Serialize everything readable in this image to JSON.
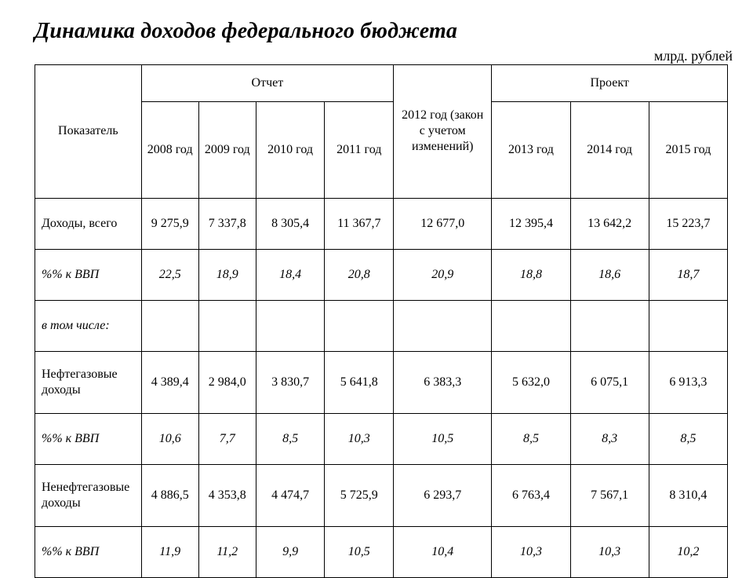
{
  "title": "Динамика доходов федерального бюджета",
  "unit": "млрд. рублей",
  "header": {
    "indicator": "Показатель",
    "report": "Отчет",
    "mid": "2012 год (закон с учетом изменений)",
    "project": "Проект",
    "y2008": "2008 год",
    "y2009": "2009 год",
    "y2010": "2010 год",
    "y2011": "2011 год",
    "y2013": "2013 год",
    "y2014": "2014 год",
    "y2015": "2015 год"
  },
  "rows": {
    "total": {
      "label": "Доходы, всего",
      "v2008": "9 275,9",
      "v2009": "7 337,8",
      "v2010": "8 305,4",
      "v2011": "11 367,7",
      "v2012": "12 677,0",
      "v2013": "12 395,4",
      "v2014": "13 642,2",
      "v2015": "15 223,7"
    },
    "total_gdp": {
      "label": "%% к ВВП",
      "v2008": "22,5",
      "v2009": "18,9",
      "v2010": "18,4",
      "v2011": "20,8",
      "v2012": "20,9",
      "v2013": "18,8",
      "v2014": "18,6",
      "v2015": "18,7"
    },
    "including": {
      "label": "в том числе:"
    },
    "oil": {
      "label": "Нефтегазовые доходы",
      "v2008": "4 389,4",
      "v2009": "2 984,0",
      "v2010": "3 830,7",
      "v2011": "5 641,8",
      "v2012": "6 383,3",
      "v2013": "5 632,0",
      "v2014": "6 075,1",
      "v2015": "6 913,3"
    },
    "oil_gdp": {
      "label": "%% к ВВП",
      "v2008": "10,6",
      "v2009": "7,7",
      "v2010": "8,5",
      "v2011": "10,3",
      "v2012": "10,5",
      "v2013": "8,5",
      "v2014": "8,3",
      "v2015": "8,5"
    },
    "nonoil": {
      "label": "Ненефтегазовые доходы",
      "v2008": "4 886,5",
      "v2009": "4 353,8",
      "v2010": "4 474,7",
      "v2011": "5 725,9",
      "v2012": "6 293,7",
      "v2013": "6 763,4",
      "v2014": "7 567,1",
      "v2015": "8 310,4"
    },
    "nonoil_gdp": {
      "label": "%% к ВВП",
      "v2008": "11,9",
      "v2009": "11,2",
      "v2010": "9,9",
      "v2011": "10,5",
      "v2012": "10,4",
      "v2013": "10,3",
      "v2014": "10,3",
      "v2015": "10,2"
    }
  },
  "style": {
    "background": "#ffffff",
    "border_color": "#000000",
    "text_color": "#000000",
    "title_fontsize_pt": 21,
    "body_fontsize_pt": 12,
    "font_family": "Times New Roman"
  }
}
